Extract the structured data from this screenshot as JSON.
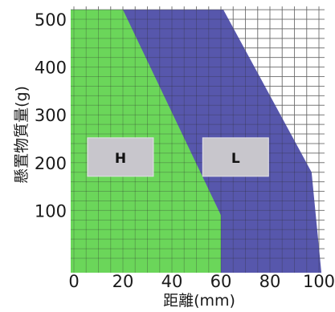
{
  "chart_data": {
    "type": "area",
    "title": "",
    "xlabel": "距離(mm)",
    "ylabel": "懸置物質量(g)",
    "xlim": [
      0,
      103
    ],
    "ylim": [
      0,
      525
    ],
    "x_ticks": [
      0,
      20,
      40,
      60,
      80,
      100
    ],
    "y_ticks": [
      100,
      200,
      300,
      400,
      500
    ],
    "grid": true,
    "series": [
      {
        "name": "L",
        "color": "#5757ac",
        "points": [
          {
            "x": 0,
            "y": 0
          },
          {
            "x": 0,
            "y": 520
          },
          {
            "x": 61,
            "y": 520
          },
          {
            "x": 97,
            "y": 180
          },
          {
            "x": 101,
            "y": 0
          }
        ]
      },
      {
        "name": "H",
        "color": "#6bd65a",
        "points": [
          {
            "x": 0,
            "y": 0
          },
          {
            "x": 0,
            "y": 520
          },
          {
            "x": 20,
            "y": 520
          },
          {
            "x": 60,
            "y": 90
          },
          {
            "x": 60,
            "y": 0
          }
        ]
      }
    ],
    "zone_labels": [
      {
        "text": "H",
        "x": 19,
        "y": 210
      },
      {
        "text": "L",
        "x": 66,
        "y": 210
      }
    ]
  }
}
